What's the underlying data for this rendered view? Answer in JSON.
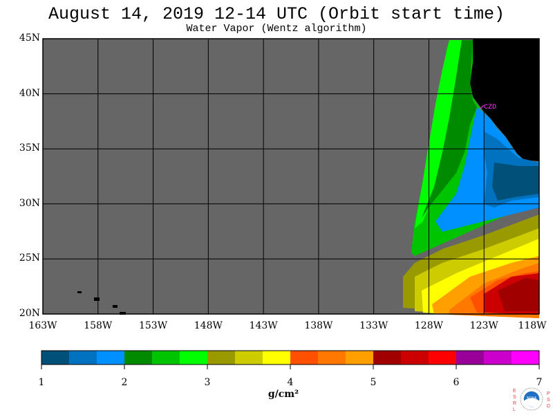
{
  "header": {
    "title": "August 14, 2019  12-14 UTC  (Orbit start time)",
    "subtitle": "Water Vapor (Wentz algorithm)"
  },
  "map": {
    "lon_range": [
      -163,
      -118
    ],
    "lat_range": [
      20,
      45
    ],
    "lat_labels": [
      "45N",
      "40N",
      "35N",
      "30N",
      "25N",
      "20N"
    ],
    "lon_labels": [
      "163W",
      "158W",
      "153W",
      "148W",
      "143W",
      "138W",
      "133W",
      "128W",
      "123W",
      "118W"
    ],
    "station_label": "CZD",
    "colors": {
      "no_data": "#666666",
      "land": "#000000",
      "station": "#ff33ff",
      "grid": "#000000"
    }
  },
  "colorbar": {
    "tick_labels": [
      "1",
      "2",
      "3",
      "4",
      "5",
      "6",
      "7"
    ],
    "unit": "g/cm²",
    "colors": [
      "#00507a",
      "#0072c0",
      "#0090ff",
      "#008a00",
      "#00c400",
      "#00ff00",
      "#999900",
      "#cccc00",
      "#ffff00",
      "#ff5000",
      "#ff7800",
      "#ffa000",
      "#a00000",
      "#cc0000",
      "#ff0000",
      "#990099",
      "#cc00cc",
      "#ff00ff"
    ]
  },
  "logo": {
    "left_letters": [
      "E",
      "S",
      "R",
      "L"
    ],
    "right_letters": [
      "P",
      "S",
      "D"
    ],
    "center_text": "NOAA"
  }
}
